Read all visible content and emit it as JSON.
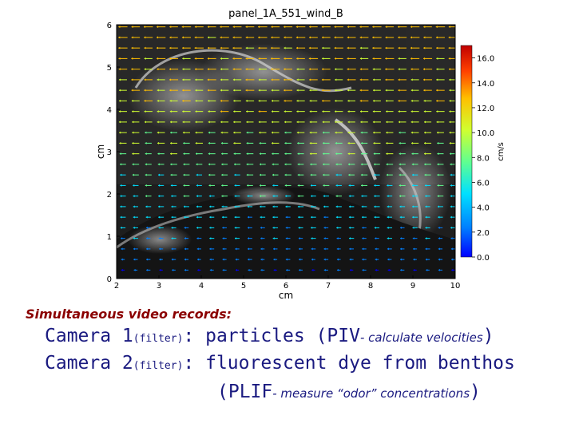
{
  "chart_data": {
    "type": "heatmap",
    "title": "panel_1A_551_wind_B",
    "xlabel": "cm",
    "ylabel": "cm",
    "xlim": [
      2,
      10
    ],
    "ylim": [
      0,
      6
    ],
    "xticks": [
      "2",
      "3",
      "4",
      "5",
      "6",
      "7",
      "8",
      "9",
      "10"
    ],
    "yticks": [
      "0",
      "1",
      "2",
      "3",
      "4",
      "5",
      "6"
    ],
    "colorbar": {
      "label": "cm/s",
      "range": [
        0,
        17
      ],
      "ticks": [
        "0.0",
        "2.0",
        "4.0",
        "6.0",
        "8.0",
        "10.0",
        "12.0",
        "14.0",
        "16.0"
      ],
      "tick_values": [
        0,
        2,
        4,
        6,
        8,
        10,
        12,
        14,
        16
      ],
      "colors": [
        "#0000ff",
        "#0080ff",
        "#00e0ff",
        "#60ff90",
        "#d0ff30",
        "#ffc000",
        "#ff4000",
        "#d00000"
      ]
    },
    "vector_field": {
      "direction": "left",
      "speed_profile": [
        {
          "y": 6.0,
          "speed": 11.5
        },
        {
          "y": 5.0,
          "speed": 11
        },
        {
          "y": 4.0,
          "speed": 10
        },
        {
          "y": 3.0,
          "speed": 8
        },
        {
          "y": 2.0,
          "speed": 6
        },
        {
          "y": 1.0,
          "speed": 4
        },
        {
          "y": 0.0,
          "speed": 2
        }
      ],
      "background": "dark grayscale image with bright fluorescent dye plumes above benthos"
    }
  },
  "caption": {
    "heading": "Simultaneous video records:",
    "line1_main": "Camera 1",
    "line1_filter": "(filter)",
    "line1_colon": ": particles (PIV",
    "line1_dash": "- calculate velocities",
    "line1_close": ")",
    "line2_main": "Camera 2",
    "line2_filter": "(filter)",
    "line2_rest": ": fluorescent dye from benthos",
    "line3_open": "(PLIF",
    "line3_dash": "- measure “odor” concentrations",
    "line3_close": ")"
  }
}
